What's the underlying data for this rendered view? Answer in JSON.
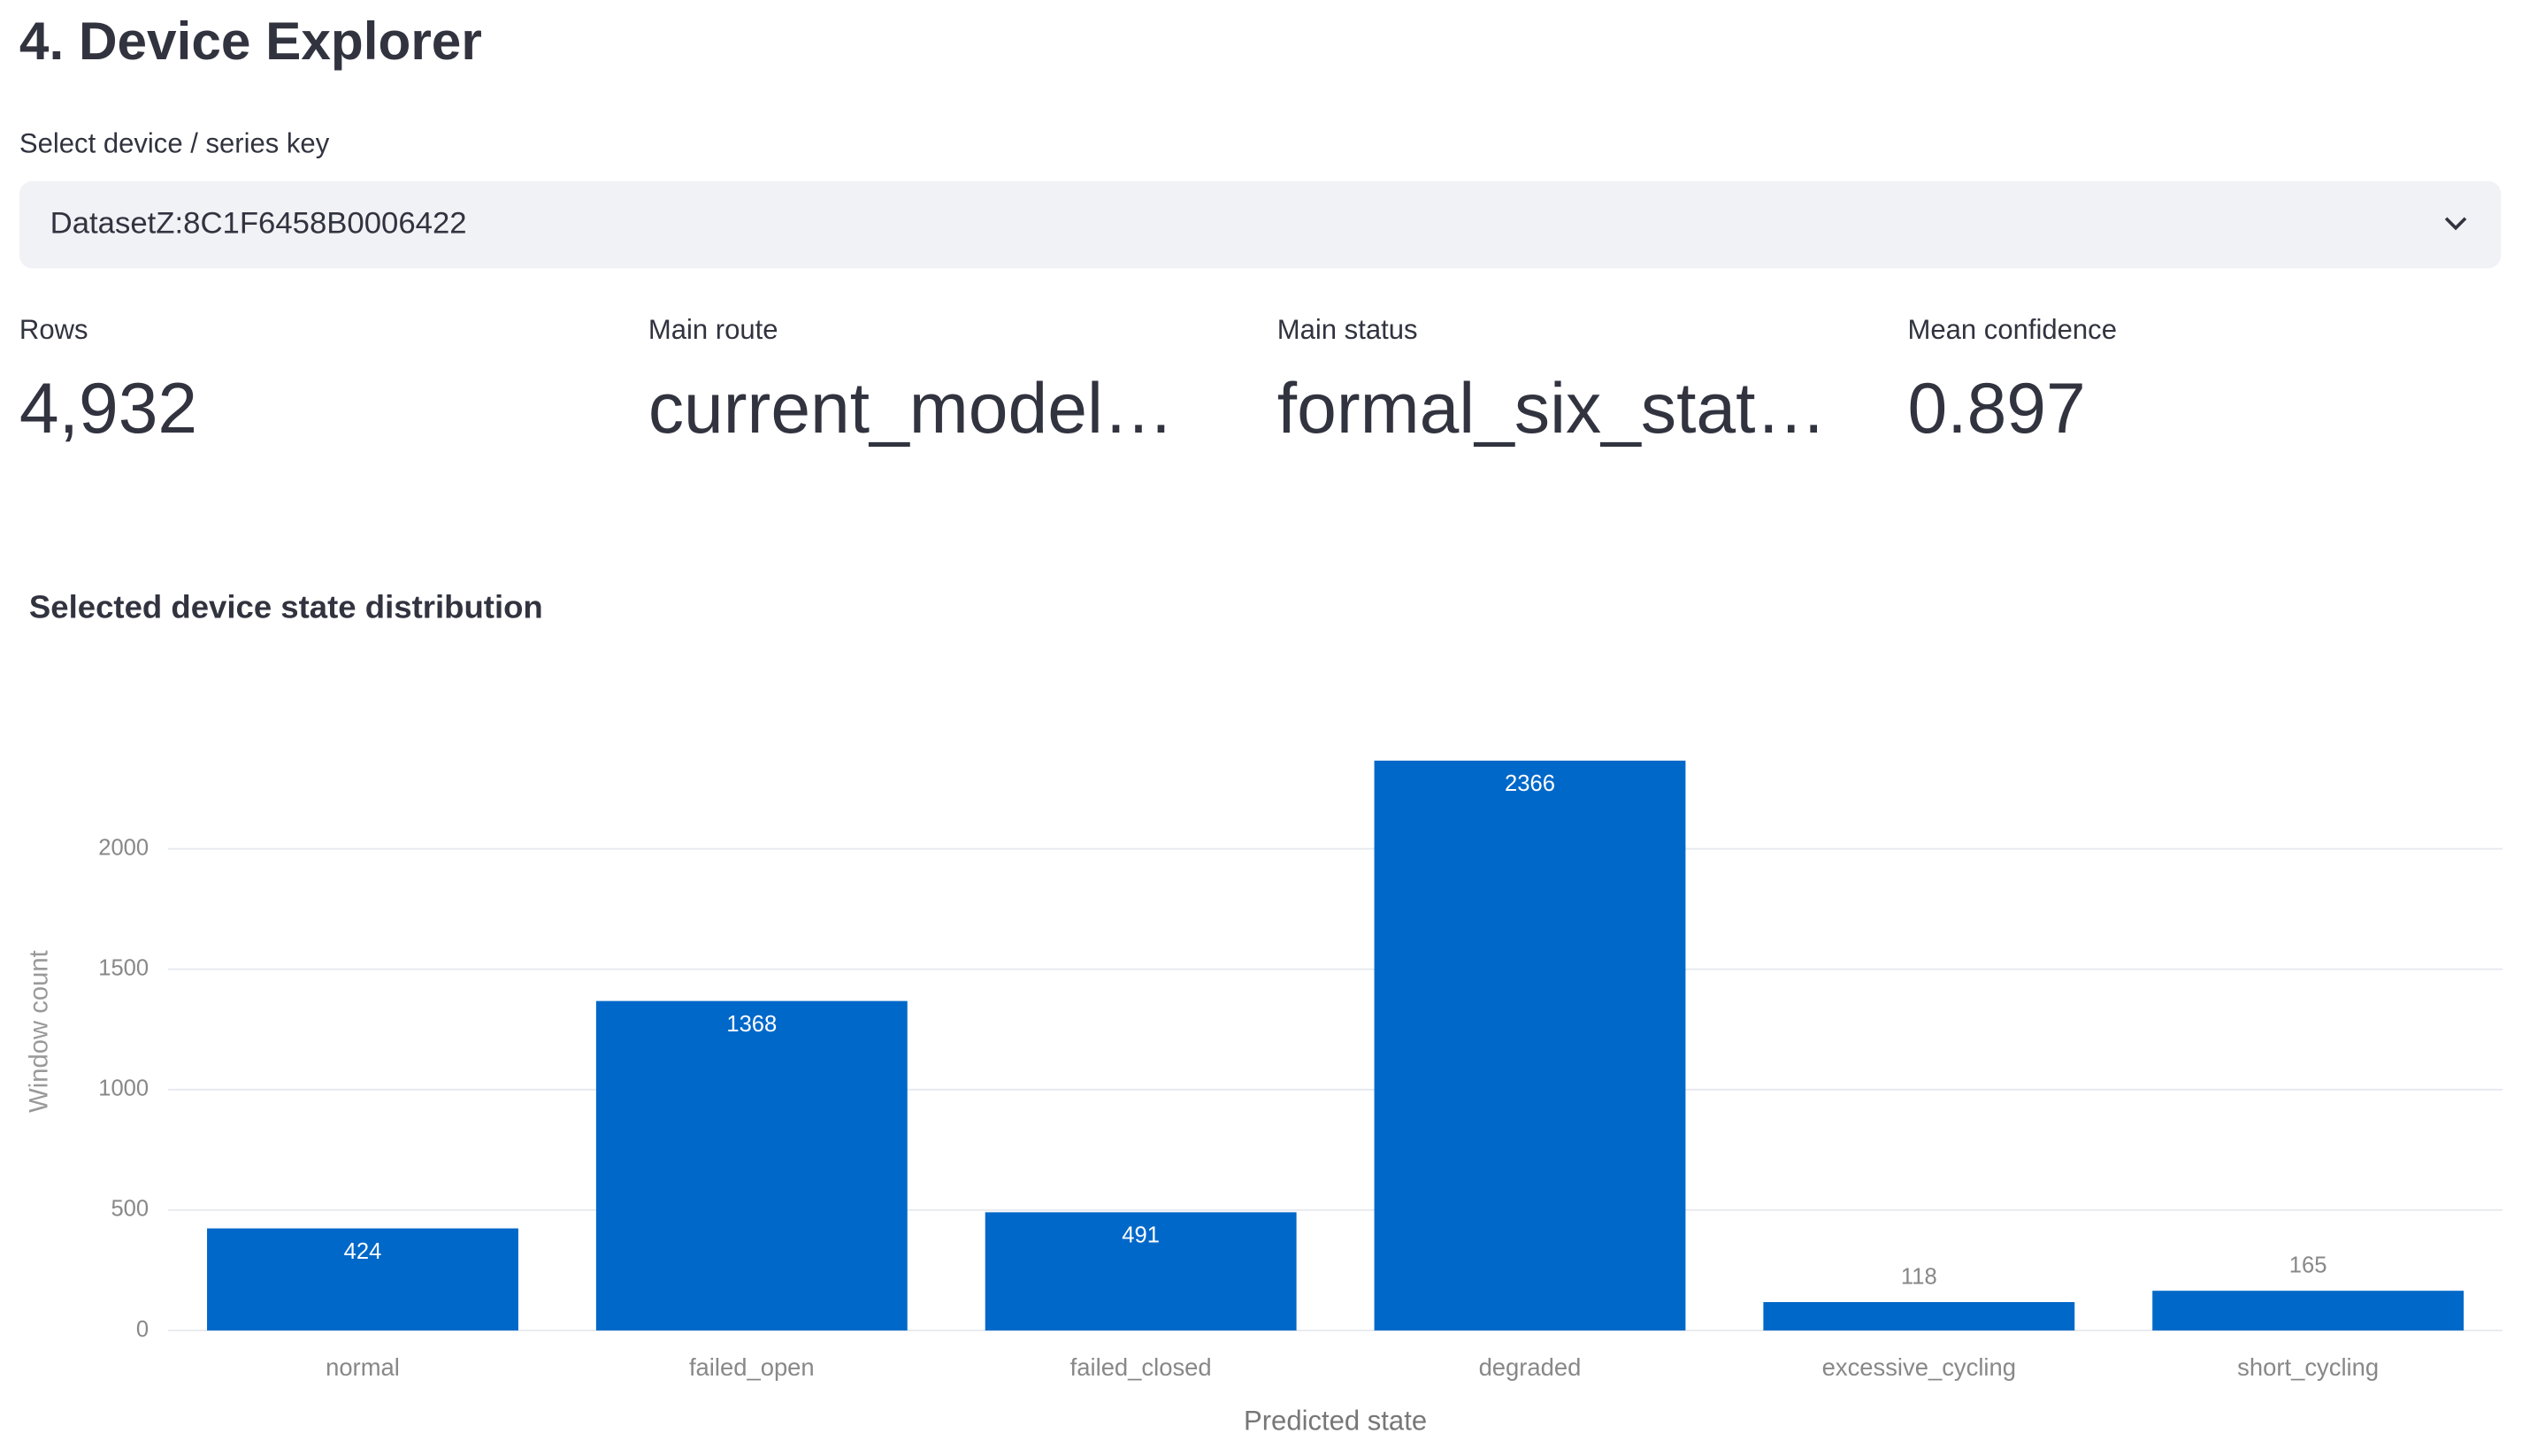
{
  "header": {
    "title": "4. Device Explorer"
  },
  "select": {
    "label": "Select device / series key",
    "value": "DatasetZ:8C1F6458B0006422"
  },
  "metrics": [
    {
      "label": "Rows",
      "value": "4,932"
    },
    {
      "label": "Main route",
      "value": "current_model…"
    },
    {
      "label": "Main status",
      "value": "formal_six_stat…"
    },
    {
      "label": "Mean confidence",
      "value": "0.897"
    }
  ],
  "chart_data": {
    "type": "bar",
    "title": "Selected device state distribution",
    "x_label": "Predicted state",
    "y_label": "Window count",
    "categories": [
      "normal",
      "failed_open",
      "failed_closed",
      "degraded",
      "excessive_cycling",
      "short_cycling"
    ],
    "values": [
      424,
      1368,
      491,
      2366,
      118,
      165
    ],
    "color": "#0068c9",
    "ylim": [
      0,
      2490
    ],
    "yticks": [
      0,
      500,
      1000,
      1500,
      2000
    ],
    "grid": true
  }
}
